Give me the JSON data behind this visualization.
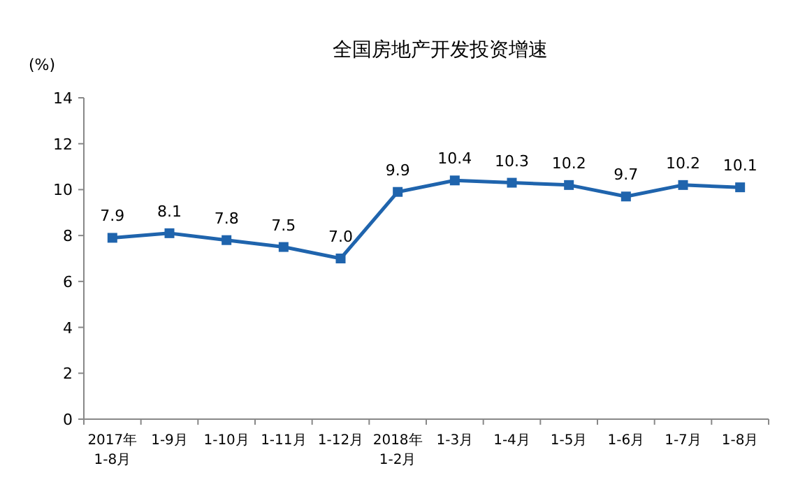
{
  "chart_data": {
    "type": "line",
    "title": "全国房地产开发投资增速",
    "ylabel": "(%)",
    "categories": [
      "2017年\n1-8月",
      "1-9月",
      "1-10月",
      "1-11月",
      "1-12月",
      "2018年\n1-2月",
      "1-3月",
      "1-4月",
      "1-5月",
      "1-6月",
      "1-7月",
      "1-8月"
    ],
    "series": [
      {
        "color": "#1f64ad",
        "values": [
          7.9,
          8.1,
          7.8,
          7.5,
          7.0,
          9.9,
          10.4,
          10.3,
          10.2,
          9.7,
          10.2,
          10.1
        ],
        "value_labels": [
          "7.9",
          "8.1",
          "7.8",
          "7.5",
          "7.0",
          "9.9",
          "10.4",
          "10.3",
          "10.2",
          "9.7",
          "10.2",
          "10.1"
        ]
      }
    ],
    "ylim": [
      0,
      14
    ],
    "yticks": [
      0,
      2,
      4,
      6,
      8,
      10,
      12,
      14
    ],
    "marker": "square",
    "line_style": "solid",
    "grid": false
  }
}
